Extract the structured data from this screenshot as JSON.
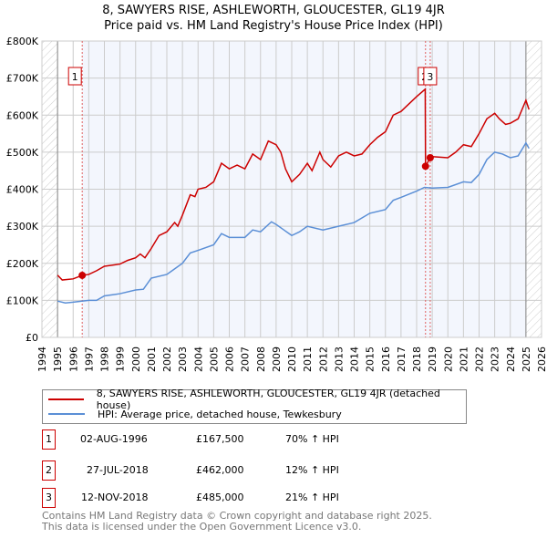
{
  "title": "8, SAWYERS RISE, ASHLEWORTH, GLOUCESTER, GL19 4JR",
  "subtitle": "Price paid vs. HM Land Registry's House Price Index (HPI)",
  "chart_data": {
    "type": "line",
    "xlim": [
      1994,
      2026
    ],
    "ylim": [
      0,
      800000
    ],
    "yticks": [
      {
        "v": 0,
        "label": "£0"
      },
      {
        "v": 100000,
        "label": "£100K"
      },
      {
        "v": 200000,
        "label": "£200K"
      },
      {
        "v": 300000,
        "label": "£300K"
      },
      {
        "v": 400000,
        "label": "£400K"
      },
      {
        "v": 500000,
        "label": "£500K"
      },
      {
        "v": 600000,
        "label": "£600K"
      },
      {
        "v": 700000,
        "label": "£700K"
      },
      {
        "v": 800000,
        "label": "£800K"
      }
    ],
    "xticks": [
      "1994",
      "1995",
      "1996",
      "1997",
      "1998",
      "1999",
      "2000",
      "2001",
      "2002",
      "2003",
      "2004",
      "2005",
      "2006",
      "2007",
      "2008",
      "2009",
      "2010",
      "2011",
      "2012",
      "2013",
      "2014",
      "2015",
      "2016",
      "2017",
      "2018",
      "2019",
      "2020",
      "2021",
      "2022",
      "2023",
      "2024",
      "2025",
      "2026"
    ],
    "grid": true,
    "data_range": [
      1995,
      2025
    ],
    "series": [
      {
        "name": "8, SAWYERS RISE, ASHLEWORTH, GLOUCESTER, GL19 4JR (detached house)",
        "color": "#cc0000",
        "points": [
          [
            1995,
            168000
          ],
          [
            1995.3,
            155000
          ],
          [
            1996,
            158000
          ],
          [
            1996.58,
            167500
          ],
          [
            1997,
            170000
          ],
          [
            1997.5,
            180000
          ],
          [
            1998,
            192000
          ],
          [
            1999,
            198000
          ],
          [
            1999.5,
            208000
          ],
          [
            2000,
            215000
          ],
          [
            2000.3,
            225000
          ],
          [
            2000.6,
            215000
          ],
          [
            2001,
            240000
          ],
          [
            2001.5,
            275000
          ],
          [
            2002,
            285000
          ],
          [
            2002.5,
            310000
          ],
          [
            2002.7,
            300000
          ],
          [
            2003,
            330000
          ],
          [
            2003.5,
            385000
          ],
          [
            2003.8,
            380000
          ],
          [
            2004,
            400000
          ],
          [
            2004.5,
            405000
          ],
          [
            2005,
            420000
          ],
          [
            2005.5,
            470000
          ],
          [
            2006,
            455000
          ],
          [
            2006.5,
            465000
          ],
          [
            2007,
            455000
          ],
          [
            2007.5,
            495000
          ],
          [
            2008,
            480000
          ],
          [
            2008.5,
            530000
          ],
          [
            2009,
            520000
          ],
          [
            2009.3,
            500000
          ],
          [
            2009.6,
            455000
          ],
          [
            2010,
            420000
          ],
          [
            2010.5,
            440000
          ],
          [
            2011,
            470000
          ],
          [
            2011.3,
            450000
          ],
          [
            2011.8,
            500000
          ],
          [
            2012,
            480000
          ],
          [
            2012.5,
            460000
          ],
          [
            2013,
            490000
          ],
          [
            2013.5,
            500000
          ],
          [
            2014,
            490000
          ],
          [
            2014.5,
            495000
          ],
          [
            2015,
            520000
          ],
          [
            2015.5,
            540000
          ],
          [
            2016,
            555000
          ],
          [
            2016.5,
            600000
          ],
          [
            2017,
            610000
          ],
          [
            2017.5,
            630000
          ],
          [
            2018,
            650000
          ],
          [
            2018.55,
            670000
          ],
          [
            2018.57,
            462000
          ],
          [
            2018.87,
            485000
          ],
          [
            2019,
            488000
          ],
          [
            2020,
            485000
          ],
          [
            2020.5,
            500000
          ],
          [
            2021,
            520000
          ],
          [
            2021.5,
            515000
          ],
          [
            2022,
            550000
          ],
          [
            2022.5,
            590000
          ],
          [
            2023,
            605000
          ],
          [
            2023.3,
            590000
          ],
          [
            2023.7,
            575000
          ],
          [
            2024,
            578000
          ],
          [
            2024.5,
            590000
          ],
          [
            2025,
            640000
          ],
          [
            2025.2,
            615000
          ]
        ]
      },
      {
        "name": "HPI: Average price, detached house, Tewkesbury",
        "color": "#5b8fd6",
        "points": [
          [
            1995,
            98000
          ],
          [
            1995.5,
            93000
          ],
          [
            1996,
            95000
          ],
          [
            1997,
            100000
          ],
          [
            1997.5,
            100000
          ],
          [
            1998,
            112000
          ],
          [
            1999,
            118000
          ],
          [
            2000,
            128000
          ],
          [
            2000.5,
            130000
          ],
          [
            2001,
            160000
          ],
          [
            2002,
            170000
          ],
          [
            2002.5,
            185000
          ],
          [
            2003,
            200000
          ],
          [
            2003.5,
            228000
          ],
          [
            2004,
            235000
          ],
          [
            2005,
            250000
          ],
          [
            2005.5,
            280000
          ],
          [
            2006,
            270000
          ],
          [
            2007,
            270000
          ],
          [
            2007.5,
            290000
          ],
          [
            2008,
            285000
          ],
          [
            2008.7,
            312000
          ],
          [
            2009,
            305000
          ],
          [
            2009.5,
            290000
          ],
          [
            2010,
            275000
          ],
          [
            2010.5,
            285000
          ],
          [
            2011,
            300000
          ],
          [
            2012,
            290000
          ],
          [
            2013,
            300000
          ],
          [
            2014,
            310000
          ],
          [
            2015,
            335000
          ],
          [
            2016,
            345000
          ],
          [
            2016.5,
            370000
          ],
          [
            2017,
            378000
          ],
          [
            2018,
            395000
          ],
          [
            2018.5,
            405000
          ],
          [
            2019,
            403000
          ],
          [
            2020,
            405000
          ],
          [
            2021,
            420000
          ],
          [
            2021.5,
            418000
          ],
          [
            2022,
            440000
          ],
          [
            2022.5,
            480000
          ],
          [
            2023,
            500000
          ],
          [
            2023.5,
            495000
          ],
          [
            2024,
            485000
          ],
          [
            2024.5,
            490000
          ],
          [
            2025,
            525000
          ],
          [
            2025.2,
            510000
          ]
        ]
      }
    ],
    "sales": [
      {
        "n": "1",
        "x": 1996.58,
        "price": 167500
      },
      {
        "n": "2",
        "x": 2018.57,
        "price": 462000
      },
      {
        "n": "3",
        "x": 2018.87,
        "price": 485000
      }
    ]
  },
  "legend": {
    "red": "8, SAWYERS RISE, ASHLEWORTH, GLOUCESTER, GL19 4JR (detached house)",
    "blue": "HPI: Average price, detached house, Tewkesbury"
  },
  "table": [
    {
      "n": "1",
      "date": "02-AUG-1996",
      "price": "£167,500",
      "hpi": "70% ↑ HPI"
    },
    {
      "n": "2",
      "date": "27-JUL-2018",
      "price": "£462,000",
      "hpi": "12% ↑ HPI"
    },
    {
      "n": "3",
      "date": "12-NOV-2018",
      "price": "£485,000",
      "hpi": "21% ↑ HPI"
    }
  ],
  "footer": [
    "Contains HM Land Registry data © Crown copyright and database right 2025.",
    "This data is licensed under the Open Government Licence v3.0."
  ]
}
